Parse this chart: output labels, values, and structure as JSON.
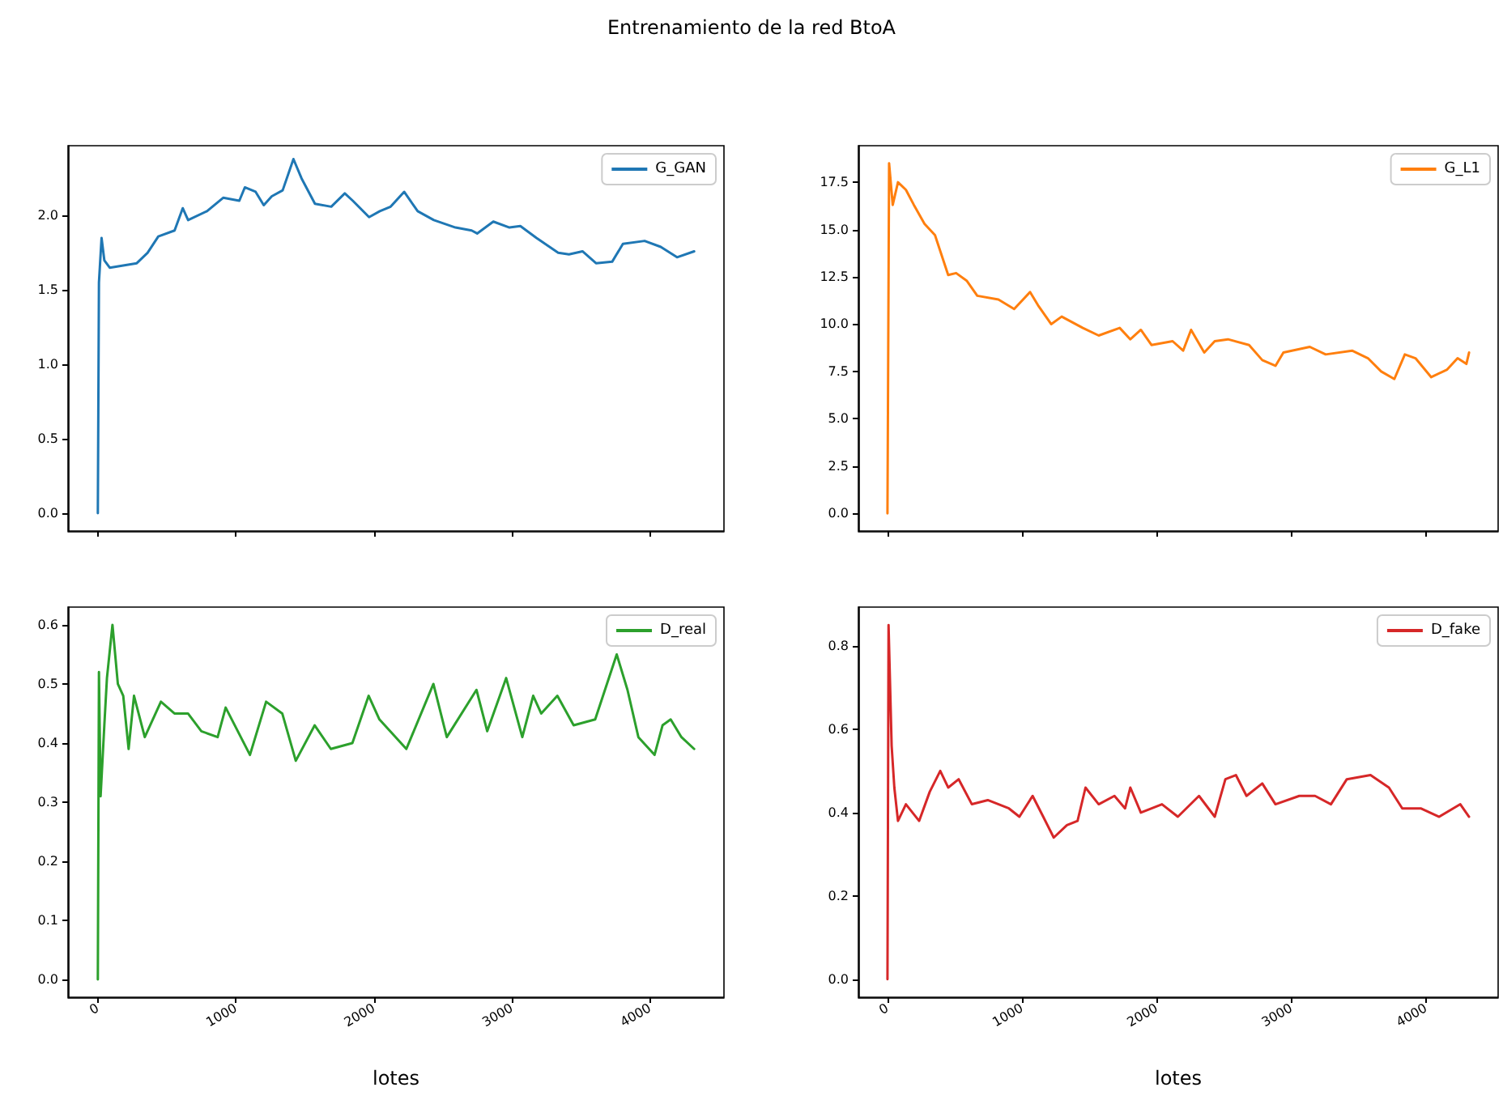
{
  "chart_data": [
    {
      "type": "line",
      "title": "Entrenamiento de la red BtoA",
      "x": [
        0,
        8,
        27,
        47,
        86,
        282,
        360,
        438,
        556,
        615,
        654,
        791,
        908,
        1025,
        1065,
        1143,
        1202,
        1260,
        1339,
        1417,
        1476,
        1573,
        1691,
        1789,
        1847,
        1965,
        2043,
        2121,
        2219,
        2317,
        2434,
        2591,
        2708,
        2748,
        2865,
        2982,
        3061,
        3178,
        3335,
        3413,
        3511,
        3609,
        3726,
        3804,
        3961,
        4078,
        4196,
        4320
      ],
      "series": [
        {
          "name": "G_GAN",
          "color": "#1f77b4",
          "values": [
            0.0,
            1.55,
            1.85,
            1.7,
            1.65,
            1.68,
            1.75,
            1.86,
            1.9,
            2.05,
            1.97,
            2.03,
            2.12,
            2.1,
            2.19,
            2.16,
            2.07,
            2.13,
            2.17,
            2.38,
            2.25,
            2.08,
            2.06,
            2.15,
            2.1,
            1.99,
            2.03,
            2.06,
            2.16,
            2.03,
            1.97,
            1.92,
            1.9,
            1.88,
            1.96,
            1.92,
            1.93,
            1.85,
            1.75,
            1.74,
            1.76,
            1.68,
            1.69,
            1.81,
            1.83,
            1.79,
            1.72,
            1.76
          ]
        }
      ],
      "xlim": [
        -216,
        4536
      ],
      "xticks": [
        0,
        1000,
        2000,
        3000,
        4000
      ],
      "ylim": [
        -0.12,
        2.47
      ],
      "yticks": [
        {
          "value": 0,
          "label": "0.0"
        },
        0.5,
        {
          "value": 1,
          "label": "1.0"
        },
        1.5,
        {
          "value": 2,
          "label": "2.0"
        }
      ],
      "tick_labels": "y",
      "legend": "top right",
      "marker": "none",
      "line_style": "solid",
      "grid": false
    },
    {
      "type": "line",
      "x": [
        0,
        12,
        39,
        78,
        137,
        196,
        275,
        353,
        451,
        510,
        588,
        667,
        824,
        941,
        1059,
        1118,
        1216,
        1294,
        1451,
        1569,
        1725,
        1804,
        1882,
        1961,
        2118,
        2196,
        2255,
        2353,
        2431,
        2529,
        2686,
        2784,
        2882,
        2941,
        3137,
        3255,
        3451,
        3569,
        3667,
        3765,
        3843,
        3922,
        4039,
        4157,
        4235,
        4300,
        4320
      ],
      "series": [
        {
          "name": "G_L1",
          "color": "#ff7f0e",
          "values": [
            0.0,
            18.5,
            16.3,
            17.5,
            17.1,
            16.3,
            15.3,
            14.7,
            12.6,
            12.7,
            12.3,
            11.5,
            11.3,
            10.8,
            11.7,
            11.0,
            10.0,
            10.4,
            9.8,
            9.4,
            9.8,
            9.2,
            9.7,
            8.9,
            9.1,
            8.6,
            9.7,
            8.5,
            9.1,
            9.2,
            8.9,
            8.1,
            7.8,
            8.5,
            8.8,
            8.4,
            8.6,
            8.2,
            7.5,
            7.1,
            8.4,
            8.2,
            7.2,
            7.6,
            8.2,
            7.9,
            8.5
          ]
        }
      ],
      "xlim": [
        -216,
        4536
      ],
      "xticks": [
        0,
        1000,
        2000,
        3000,
        4000
      ],
      "ylim": [
        -0.93,
        19.43
      ],
      "yticks": [
        {
          "value": 0,
          "label": "0.0"
        },
        2.5,
        {
          "value": 5,
          "label": "5.0"
        },
        7.5,
        {
          "value": 10,
          "label": "10.0"
        },
        12.5,
        {
          "value": 15,
          "label": "15.0"
        },
        17.5
      ],
      "tick_labels": "y",
      "legend": "top right",
      "marker": "none",
      "line_style": "solid",
      "grid": false
    },
    {
      "type": "line",
      "xlabel": "lotes",
      "x": [
        0,
        8,
        20,
        47,
        66,
        106,
        145,
        184,
        223,
        262,
        340,
        457,
        555,
        653,
        750,
        868,
        926,
        1102,
        1219,
        1336,
        1434,
        1571,
        1688,
        1844,
        1962,
        2040,
        2235,
        2431,
        2528,
        2743,
        2821,
        2958,
        3075,
        3154,
        3212,
        3329,
        3447,
        3603,
        3759,
        3837,
        3916,
        4033,
        4091,
        4150,
        4228,
        4320
      ],
      "series": [
        {
          "name": "D_real",
          "color": "#2ca02c",
          "values": [
            0.0,
            0.52,
            0.31,
            0.43,
            0.51,
            0.6,
            0.5,
            0.48,
            0.39,
            0.48,
            0.41,
            0.47,
            0.45,
            0.45,
            0.42,
            0.41,
            0.46,
            0.38,
            0.47,
            0.45,
            0.37,
            0.43,
            0.39,
            0.4,
            0.48,
            0.44,
            0.39,
            0.5,
            0.41,
            0.49,
            0.42,
            0.51,
            0.41,
            0.48,
            0.45,
            0.48,
            0.43,
            0.44,
            0.55,
            0.49,
            0.41,
            0.38,
            0.43,
            0.44,
            0.41,
            0.39
          ]
        }
      ],
      "xlim": [
        -216,
        4536
      ],
      "xticks": [
        0,
        1000,
        2000,
        3000,
        4000
      ],
      "ylim": [
        -0.03,
        0.63
      ],
      "yticks": [
        {
          "value": 0,
          "label": "0.0"
        },
        0.1,
        0.2,
        0.3,
        0.4,
        0.5,
        0.6
      ],
      "legend": "top right",
      "marker": "none",
      "line_style": "solid",
      "grid": false
    },
    {
      "type": "line",
      "xlabel": "lotes",
      "x": [
        0,
        8,
        31,
        51,
        78,
        137,
        235,
        314,
        392,
        451,
        529,
        627,
        745,
        902,
        980,
        1078,
        1157,
        1235,
        1333,
        1412,
        1471,
        1569,
        1686,
        1765,
        1804,
        1882,
        2039,
        2157,
        2314,
        2431,
        2510,
        2588,
        2667,
        2784,
        2882,
        3059,
        3176,
        3294,
        3412,
        3588,
        3725,
        3824,
        3961,
        4098,
        4255,
        4320
      ],
      "series": [
        {
          "name": "D_fake",
          "color": "#d62728",
          "values": [
            0.0,
            0.85,
            0.56,
            0.46,
            0.38,
            0.42,
            0.38,
            0.45,
            0.5,
            0.46,
            0.48,
            0.42,
            0.43,
            0.41,
            0.39,
            0.44,
            0.39,
            0.34,
            0.37,
            0.38,
            0.46,
            0.42,
            0.44,
            0.41,
            0.46,
            0.4,
            0.42,
            0.39,
            0.44,
            0.39,
            0.48,
            0.49,
            0.44,
            0.47,
            0.42,
            0.44,
            0.44,
            0.42,
            0.48,
            0.49,
            0.46,
            0.41,
            0.41,
            0.39,
            0.42,
            0.39
          ]
        }
      ],
      "xlim": [
        -216,
        4536
      ],
      "xticks": [
        0,
        1000,
        2000,
        3000,
        4000
      ],
      "ylim": [
        -0.043,
        0.893
      ],
      "yticks": [
        {
          "value": 0,
          "label": "0.0"
        },
        0.2,
        0.4,
        0.6,
        0.8
      ],
      "legend": "top right",
      "marker": "none",
      "line_style": "solid",
      "grid": false
    }
  ]
}
